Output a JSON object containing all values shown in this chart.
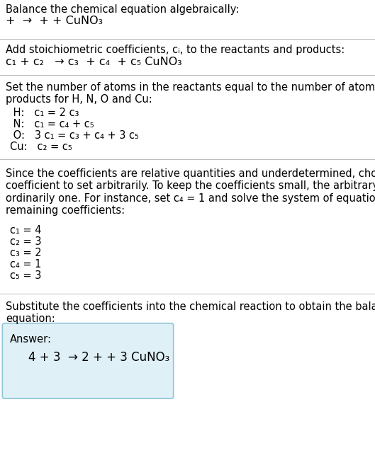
{
  "title": "Balance the chemical equation algebraically:",
  "eq1": "+  →  + + CuNO₃",
  "section2_header": "Add stoichiometric coefficients, cᵢ, to the reactants and products:",
  "eq2": "c₁ + c₂   → c₃  + c₄  + c₅ CuNO₃",
  "section3_header": "Set the number of atoms in the reactants equal to the number of atoms in the\nproducts for H, N, O and Cu:",
  "equations": [
    " H:   c₁ = 2 c₃",
    " N:   c₁ = c₄ + c₅",
    " O:   3 c₁ = c₃ + c₄ + 3 c₅",
    "Cu:   c₂ = c₅"
  ],
  "section4_text": "Since the coefficients are relative quantities and underdetermined, choose a\ncoefficient to set arbitrarily. To keep the coefficients small, the arbitrary value is\nordinarily one. For instance, set c₄ = 1 and solve the system of equations for the\nremaining coefficients:",
  "coefficients": [
    "c₁ = 4",
    "c₂ = 3",
    "c₃ = 2",
    "c₄ = 1",
    "c₅ = 3"
  ],
  "section5_text": "Substitute the coefficients into the chemical reaction to obtain the balanced\nequation:",
  "answer_label": "Answer:",
  "answer_eq": "4 + 3  → 2 + + 3 CuNO₃",
  "bg_color": "#ffffff",
  "text_color": "#000000",
  "answer_box_facecolor": "#dff0f7",
  "answer_box_edgecolor": "#90c4d8",
  "divider_color": "#bbbbbb",
  "font_size": 10.5,
  "eq_font_size": 11.5,
  "answer_font_size": 12
}
